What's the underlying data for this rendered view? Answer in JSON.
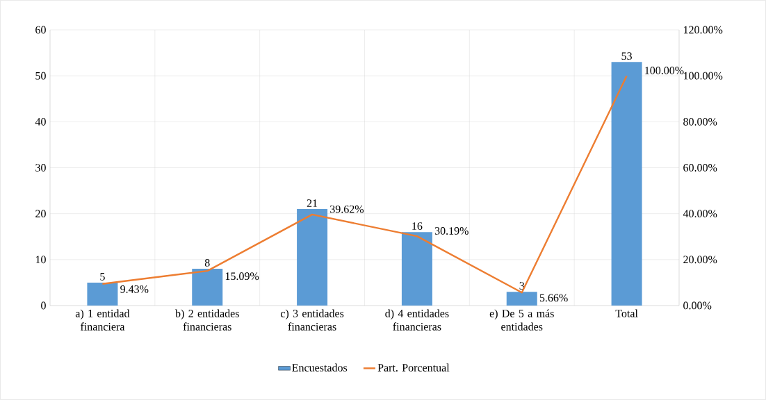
{
  "chart_data": {
    "type": "bar",
    "categories": [
      "a) 1 entidad financiera",
      "b) 2 entidades financieras",
      "c) 3 entidades financieras",
      "d) 4 entidades financieras",
      "e) De 5 a más entidades",
      "Total"
    ],
    "series": [
      {
        "name": "Encuestados",
        "color": "#5b9bd5",
        "values": [
          5,
          8,
          21,
          16,
          3,
          53
        ],
        "value_labels": [
          "5",
          "8",
          "21",
          "16",
          "3",
          "53"
        ]
      },
      {
        "name": "Part. Porcentual",
        "type": "line",
        "axis": "y2",
        "color": "#ed7d31",
        "values": [
          9.43,
          15.09,
          39.62,
          30.19,
          5.66,
          100
        ],
        "value_labels": [
          "9.43%",
          "15.09%",
          "39.62%",
          "30.19%",
          "5.66%",
          "100.00%"
        ]
      }
    ],
    "ylim": [
      0,
      60
    ],
    "yticks": [
      0,
      10,
      20,
      30,
      40,
      50,
      60
    ],
    "y2lim": [
      0,
      120
    ],
    "y2ticks": [
      {
        "value": 0,
        "label": "0.00%"
      },
      {
        "value": 20,
        "label": "20.00%"
      },
      {
        "value": 40,
        "label": "40.00%"
      },
      {
        "value": 60,
        "label": "60.00%"
      },
      {
        "value": 80,
        "label": "80.00%"
      },
      {
        "value": 100,
        "label": "100.00%"
      },
      {
        "value": 120,
        "label": "120.00%"
      }
    ],
    "grid": true,
    "legend": "bottom"
  }
}
